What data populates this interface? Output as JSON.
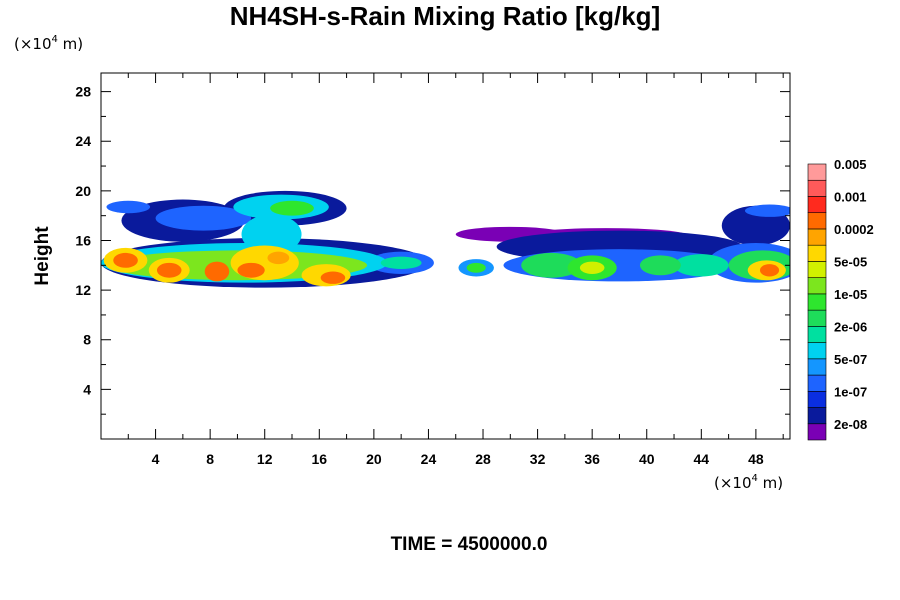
{
  "chart_data": {
    "type": "heatmap",
    "title": "NH4SH-s-Rain Mixing Ratio [kg/kg]",
    "ylabel": "Height",
    "y_unit_prefix": "(×10",
    "y_unit_exp": "4",
    "y_unit_suffix": " m)",
    "x_unit_prefix": "(×10",
    "x_unit_exp": "4",
    "x_unit_suffix": " m)",
    "xlim": [
      0,
      50.5
    ],
    "ylim": [
      0,
      29.5
    ],
    "x_ticks": [
      "4",
      "8",
      "12",
      "16",
      "20",
      "24",
      "28",
      "32",
      "36",
      "40",
      "44",
      "48"
    ],
    "y_ticks": [
      "4",
      "8",
      "12",
      "16",
      "20",
      "24",
      "28"
    ],
    "time_label": "TIME = 4500000.0",
    "colorbar": {
      "colors": [
        "#7a00b5",
        "#0a1a9c",
        "#0a2ee0",
        "#1e64ff",
        "#1496ff",
        "#00d2f0",
        "#00e0a0",
        "#1edc5a",
        "#2ee62e",
        "#7ce61e",
        "#d2f000",
        "#ffd800",
        "#ffa400",
        "#ff6a00",
        "#ff2a1e",
        "#ff5a5a",
        "#ff9a9a"
      ],
      "labels": [
        "2e-08",
        "1e-07",
        "5e-07",
        "2e-06",
        "1e-05",
        "5e-05",
        "0.0002",
        "0.001",
        "0.005"
      ]
    },
    "field_blobs": [
      {
        "cx": 2.0,
        "cy": 18.7,
        "rx": 1.6,
        "ry": 0.5,
        "level": 3
      },
      {
        "cx": 6.0,
        "cy": 17.6,
        "rx": 4.5,
        "ry": 1.7,
        "level": 1
      },
      {
        "cx": 7.5,
        "cy": 17.8,
        "rx": 3.5,
        "ry": 1.0,
        "level": 3
      },
      {
        "cx": 13.5,
        "cy": 18.6,
        "rx": 4.5,
        "ry": 1.4,
        "level": 1
      },
      {
        "cx": 13.2,
        "cy": 18.7,
        "rx": 3.5,
        "ry": 1.0,
        "level": 5
      },
      {
        "cx": 14.0,
        "cy": 18.6,
        "rx": 1.6,
        "ry": 0.6,
        "level": 8
      },
      {
        "cx": 12.5,
        "cy": 16.5,
        "rx": 2.2,
        "ry": 1.6,
        "level": 5
      },
      {
        "cx": 12.0,
        "cy": 14.2,
        "rx": 12.0,
        "ry": 2.0,
        "level": 1
      },
      {
        "cx": 10.5,
        "cy": 14.2,
        "rx": 10.5,
        "ry": 1.6,
        "level": 5
      },
      {
        "cx": 10.0,
        "cy": 14.0,
        "rx": 9.5,
        "ry": 1.2,
        "level": 9
      },
      {
        "cx": 1.8,
        "cy": 14.4,
        "rx": 1.6,
        "ry": 1.0,
        "level": 11
      },
      {
        "cx": 1.8,
        "cy": 14.4,
        "rx": 0.9,
        "ry": 0.6,
        "level": 13
      },
      {
        "cx": 5.0,
        "cy": 13.6,
        "rx": 1.5,
        "ry": 1.0,
        "level": 11
      },
      {
        "cx": 5.0,
        "cy": 13.6,
        "rx": 0.9,
        "ry": 0.6,
        "level": 13
      },
      {
        "cx": 8.5,
        "cy": 13.5,
        "rx": 0.9,
        "ry": 0.8,
        "level": 13
      },
      {
        "cx": 12.0,
        "cy": 14.2,
        "rx": 2.5,
        "ry": 1.4,
        "level": 11
      },
      {
        "cx": 11.0,
        "cy": 13.6,
        "rx": 1.0,
        "ry": 0.6,
        "level": 13
      },
      {
        "cx": 13.0,
        "cy": 14.6,
        "rx": 0.8,
        "ry": 0.5,
        "level": 12
      },
      {
        "cx": 16.5,
        "cy": 13.2,
        "rx": 1.8,
        "ry": 0.9,
        "level": 11
      },
      {
        "cx": 17.0,
        "cy": 13.0,
        "rx": 0.9,
        "ry": 0.5,
        "level": 13
      },
      {
        "cx": 22.0,
        "cy": 14.2,
        "rx": 2.4,
        "ry": 0.9,
        "level": 3
      },
      {
        "cx": 22.0,
        "cy": 14.2,
        "rx": 1.5,
        "ry": 0.5,
        "level": 6
      },
      {
        "cx": 30.0,
        "cy": 16.5,
        "rx": 4.0,
        "ry": 0.6,
        "level": 0
      },
      {
        "cx": 37.0,
        "cy": 16.4,
        "rx": 6.0,
        "ry": 0.6,
        "level": 0
      },
      {
        "cx": 38.0,
        "cy": 15.5,
        "rx": 9.0,
        "ry": 1.3,
        "level": 1
      },
      {
        "cx": 36.5,
        "cy": 15.8,
        "rx": 4.0,
        "ry": 0.6,
        "level": 0
      },
      {
        "cx": 27.5,
        "cy": 13.8,
        "rx": 1.3,
        "ry": 0.7,
        "level": 4
      },
      {
        "cx": 27.5,
        "cy": 13.8,
        "rx": 0.7,
        "ry": 0.4,
        "level": 8
      },
      {
        "cx": 38.0,
        "cy": 14.0,
        "rx": 8.5,
        "ry": 1.3,
        "level": 3
      },
      {
        "cx": 33.0,
        "cy": 14.0,
        "rx": 2.2,
        "ry": 1.0,
        "level": 7
      },
      {
        "cx": 36.0,
        "cy": 13.8,
        "rx": 1.8,
        "ry": 1.0,
        "level": 8
      },
      {
        "cx": 36.0,
        "cy": 13.8,
        "rx": 0.9,
        "ry": 0.5,
        "level": 10
      },
      {
        "cx": 41.0,
        "cy": 14.0,
        "rx": 1.5,
        "ry": 0.8,
        "level": 7
      },
      {
        "cx": 44.0,
        "cy": 14.0,
        "rx": 2.0,
        "ry": 0.9,
        "level": 6
      },
      {
        "cx": 48.0,
        "cy": 17.2,
        "rx": 2.5,
        "ry": 1.6,
        "level": 1
      },
      {
        "cx": 49.0,
        "cy": 18.4,
        "rx": 1.8,
        "ry": 0.5,
        "level": 3
      },
      {
        "cx": 48.0,
        "cy": 14.2,
        "rx": 3.5,
        "ry": 1.6,
        "level": 3
      },
      {
        "cx": 48.5,
        "cy": 14.0,
        "rx": 2.5,
        "ry": 1.2,
        "level": 7
      },
      {
        "cx": 48.8,
        "cy": 13.6,
        "rx": 1.4,
        "ry": 0.8,
        "level": 11
      },
      {
        "cx": 49.0,
        "cy": 13.6,
        "rx": 0.7,
        "ry": 0.5,
        "level": 13
      }
    ]
  }
}
